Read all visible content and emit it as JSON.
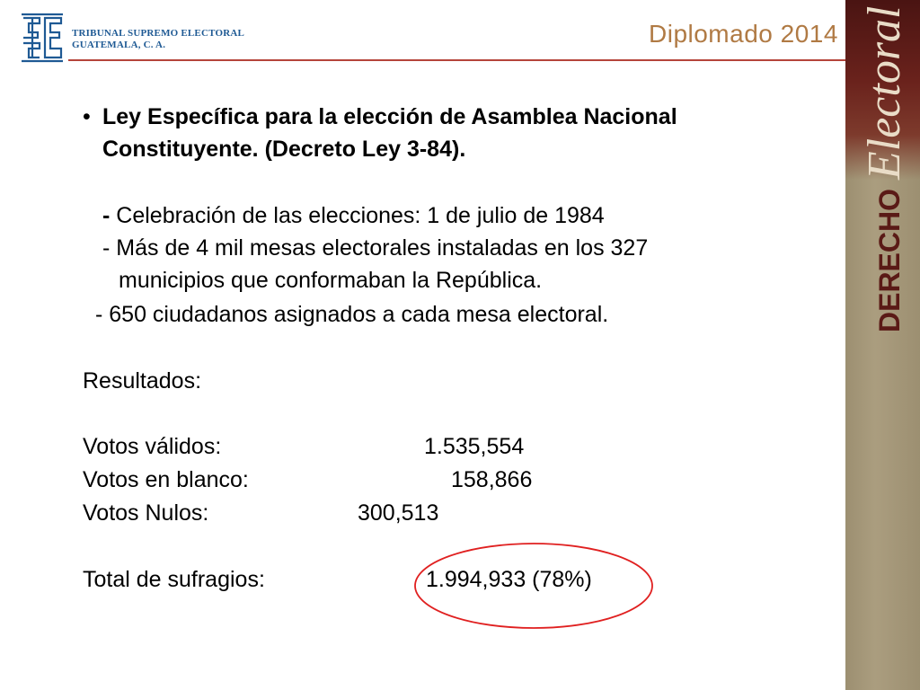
{
  "header": {
    "org_line1": "TRIBUNAL SUPREMO ELECTORAL",
    "org_line2": "GUATEMALA, C. A.",
    "program": "Diplomado 2014",
    "logo_icon": "tse-logo-icon"
  },
  "banner": {
    "word1": "DERECHO",
    "word2": "Electoral"
  },
  "bullet": {
    "marker": "•",
    "title_line1": "Ley Específica para la elección de Asamblea Nacional",
    "title_line2": "Constituyente. (Decreto Ley 3-84)."
  },
  "items": {
    "dash1": "-",
    "item1": " Celebración de las elecciones: 1 de julio de 1984",
    "item2_line1": "- Más de 4 mil mesas electorales  instaladas en los 327",
    "item2_line2": "municipios que conformaban la República.",
    "item3": "- 650 ciudadanos asignados a cada mesa electoral."
  },
  "results": {
    "heading": "Resultados:",
    "rows": [
      {
        "label": "Votos válidos:",
        "value": "1.535,554"
      },
      {
        "label": "Votos en blanco:",
        "value": "158,866"
      },
      {
        "label": "Votos Nulos:",
        "value": "300,513"
      }
    ],
    "total_label": "Total de sufragios:",
    "total_value": "1.994,933  (78%)"
  },
  "colors": {
    "org_text": "#1f5a94",
    "program_text": "#b07a44",
    "rule": "#b5443b",
    "banner_bg": "#a69878",
    "banner_dark": "#5a1a16",
    "circle": "#e02020"
  }
}
